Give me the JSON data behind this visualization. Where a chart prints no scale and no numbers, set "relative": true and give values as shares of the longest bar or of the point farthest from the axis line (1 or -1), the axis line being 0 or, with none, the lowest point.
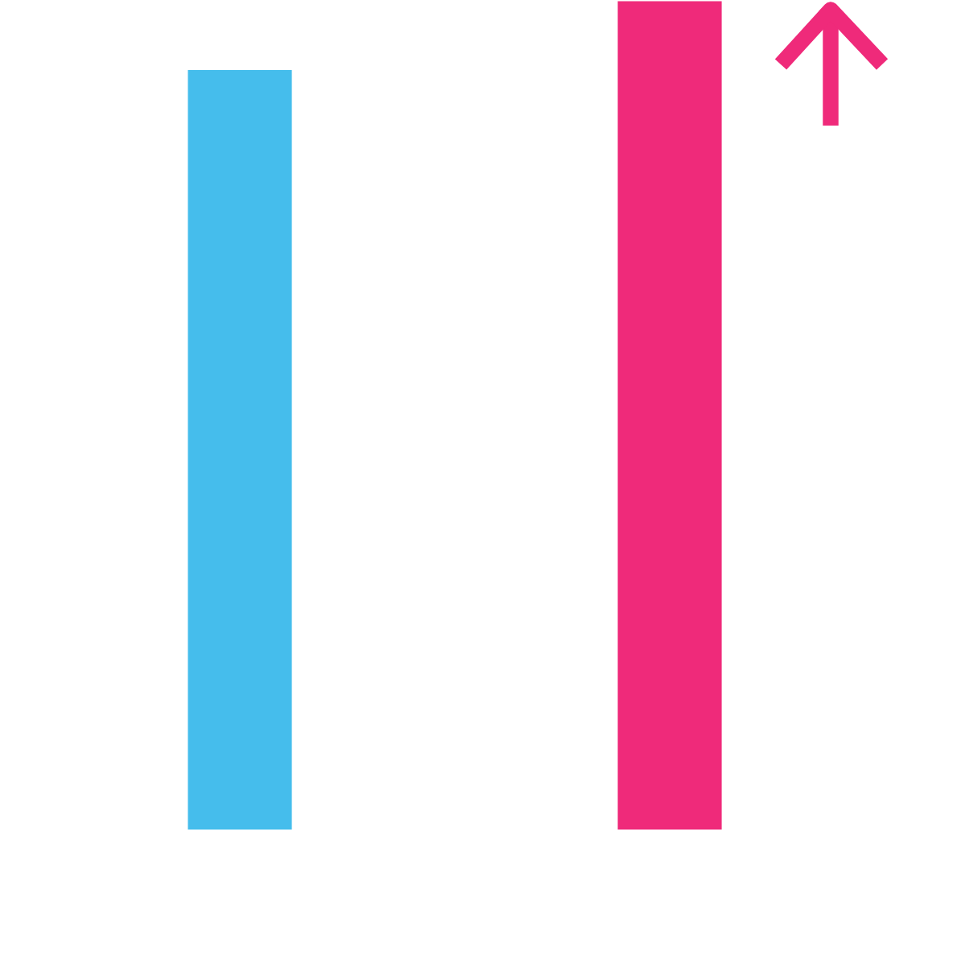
{
  "chart_data": {
    "type": "bar",
    "relative": true,
    "categories": [
      null,
      null
    ],
    "values": [
      0.917,
      1
    ],
    "colors": [
      "#45bdec",
      "#ef2a7a"
    ]
  }
}
